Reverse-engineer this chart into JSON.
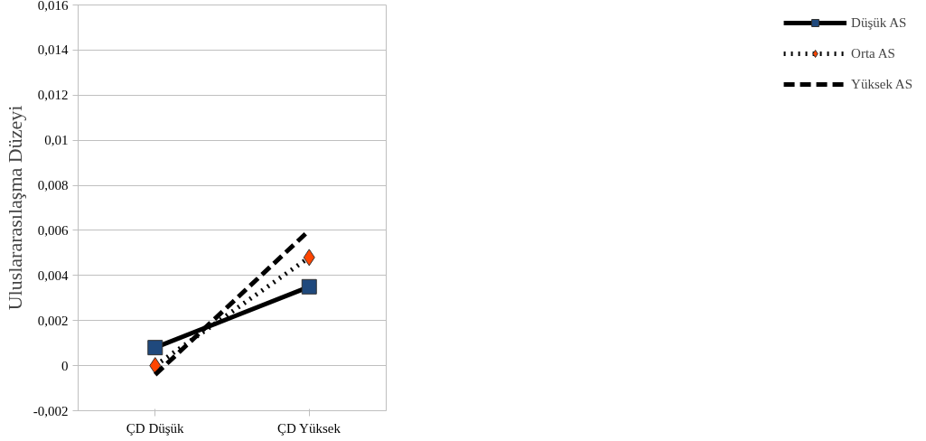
{
  "chart_data": {
    "type": "line",
    "ylabel": "Uluslararasılaşma Düzeyi",
    "categories": [
      "ÇD Düşük",
      "ÇD Yüksek"
    ],
    "series": [
      {
        "name": "Düşük AS",
        "color": "#000000",
        "colors": [
          "#1f497d",
          "#1f497d"
        ],
        "marker": "square",
        "line_style": "solid",
        "values": [
          0.0008,
          0.0035
        ]
      },
      {
        "name": "Orta AS",
        "color": "#000000",
        "colors": [
          "#ff4500",
          "#ff4500"
        ],
        "marker": "diamond",
        "line_style": "dotted",
        "values": [
          0.0,
          0.0048
        ]
      },
      {
        "name": "Yüksek AS",
        "color": "#000000",
        "marker": "none",
        "line_style": "dashed",
        "values": [
          -0.0004,
          0.006
        ]
      }
    ],
    "ylim": [
      -0.002,
      0.016
    ],
    "yticks": [
      {
        "value": -0.002,
        "label": "-0,002"
      },
      {
        "value": 0,
        "label": "0"
      },
      {
        "value": 0.002,
        "label": "0,002"
      },
      {
        "value": 0.004,
        "label": "0,004"
      },
      {
        "value": 0.006,
        "label": "0,006"
      },
      {
        "value": 0.008,
        "label": "0,008"
      },
      {
        "value": 0.01,
        "label": "0,01"
      },
      {
        "value": 0.012,
        "label": "0,012"
      },
      {
        "value": 0.014,
        "label": "0,014"
      },
      {
        "value": 0.016,
        "label": "0,016"
      }
    ],
    "grid": "y",
    "legend": "right"
  }
}
